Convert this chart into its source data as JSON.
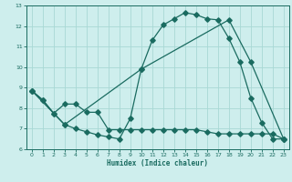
{
  "xlabel": "Humidex (Indice chaleur)",
  "bg_color": "#ceeeed",
  "line_color": "#1a6b60",
  "grid_color": "#a8d8d5",
  "xlim": [
    -0.5,
    23.5
  ],
  "ylim": [
    6,
    13
  ],
  "xticks": [
    0,
    1,
    2,
    3,
    4,
    5,
    6,
    7,
    8,
    9,
    10,
    11,
    12,
    13,
    14,
    15,
    16,
    17,
    18,
    19,
    20,
    21,
    22,
    23
  ],
  "yticks": [
    6,
    7,
    8,
    9,
    10,
    11,
    12,
    13
  ],
  "line1_x": [
    0,
    1,
    2,
    3,
    4,
    5,
    6,
    7,
    8,
    9,
    10,
    11,
    12,
    13,
    14,
    15,
    16,
    17,
    18,
    19,
    20,
    21,
    22,
    23
  ],
  "line1_y": [
    8.85,
    8.4,
    7.75,
    7.2,
    7.0,
    6.85,
    6.7,
    6.6,
    6.5,
    7.5,
    9.9,
    11.3,
    12.05,
    12.35,
    12.65,
    12.55,
    12.35,
    12.3,
    11.4,
    10.25,
    8.5,
    7.3,
    6.5,
    6.5
  ],
  "line2_x": [
    0,
    1,
    2,
    3,
    4,
    5,
    6,
    7,
    8,
    9,
    10,
    11,
    12,
    13,
    14,
    15,
    16,
    17,
    18,
    19,
    20,
    21,
    22,
    23
  ],
  "line2_y": [
    8.85,
    8.4,
    7.75,
    8.2,
    8.2,
    7.8,
    7.8,
    6.95,
    6.95,
    6.95,
    6.95,
    6.95,
    6.95,
    6.95,
    6.95,
    6.95,
    6.85,
    6.75,
    6.75,
    6.75,
    6.75,
    6.75,
    6.75,
    6.5
  ],
  "line3_x": [
    0,
    3,
    10,
    18,
    20,
    23
  ],
  "line3_y": [
    8.85,
    7.2,
    9.9,
    12.3,
    10.25,
    6.5
  ]
}
